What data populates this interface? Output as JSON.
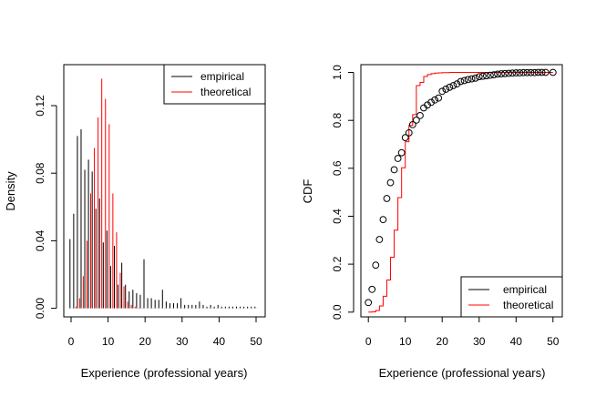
{
  "colors": {
    "empirical": "#000000",
    "theoretical": "#ff0000"
  },
  "chart_data": [
    {
      "type": "bar",
      "subtype": "histogram-comparison",
      "title": "",
      "xlabel": "Experience (professional years)",
      "ylabel": "Density",
      "xlim": [
        -2,
        52
      ],
      "ylim": [
        -0.005,
        0.143
      ],
      "xticks": [
        0,
        10,
        20,
        30,
        40,
        50
      ],
      "xtick_labels": [
        "0",
        "10",
        "20",
        "30",
        "40",
        "50"
      ],
      "yticks": [
        0.0,
        0.04,
        0.08,
        0.12
      ],
      "ytick_labels": [
        "0.00",
        "0.04",
        "0.08",
        "0.12"
      ],
      "legend": {
        "position": "top-right",
        "entries": [
          "empirical",
          "theoretical"
        ]
      },
      "series": [
        {
          "name": "empirical",
          "x": [
            0,
            1,
            2,
            3,
            4,
            5,
            6,
            7,
            8,
            9,
            10,
            11,
            12,
            13,
            14,
            15,
            16,
            17,
            18,
            19,
            20,
            21,
            22,
            23,
            24,
            25,
            26,
            27,
            28,
            29,
            30,
            31,
            32,
            33,
            34,
            35,
            36,
            37,
            38,
            39,
            40,
            41,
            42,
            43,
            44,
            45,
            46,
            47,
            48,
            49,
            50
          ],
          "values": [
            0.041,
            0.056,
            0.102,
            0.106,
            0.082,
            0.088,
            0.081,
            0.059,
            0.065,
            0.039,
            0.046,
            0.025,
            0.037,
            0.014,
            0.027,
            0.014,
            0.01,
            0.011,
            0.009,
            0.008,
            0.029,
            0.006,
            0.006,
            0.005,
            0.005,
            0.011,
            0.004,
            0.003,
            0.003,
            0.003,
            0.006,
            0.002,
            0.002,
            0.002,
            0.002,
            0.004,
            0.002,
            0.001,
            0.002,
            0.001,
            0.002,
            0.001,
            0.001,
            0.001,
            0.001,
            0.001,
            0.001,
            0.001,
            0.001,
            0.001,
            0.001
          ]
        },
        {
          "name": "theoretical",
          "x": [
            0,
            1,
            2,
            3,
            4,
            5,
            6,
            7,
            8,
            9,
            10,
            11,
            12,
            13,
            14,
            15,
            16,
            17,
            18,
            19,
            20,
            21,
            22,
            23,
            24,
            25,
            26,
            27,
            28,
            29,
            30,
            31,
            32,
            33,
            34,
            35,
            36,
            37,
            38,
            39,
            40,
            41,
            42,
            43,
            44,
            45,
            46,
            47,
            48,
            49,
            50
          ],
          "values": [
            0.0001,
            0.001,
            0.006,
            0.019,
            0.04,
            0.068,
            0.095,
            0.113,
            0.136,
            0.124,
            0.109,
            0.068,
            0.045,
            0.021,
            0.013,
            0.004,
            0.002,
            0.001,
            0.0004,
            0.0002,
            0.0001,
            0.0001,
            0.0001,
            0.0001,
            0.0001,
            0.0001,
            0.0001,
            0.0001,
            0.0001,
            0.0001,
            0.0001,
            0.0001,
            0.0001,
            0.0001,
            0.0001,
            0.0001,
            0.0001,
            0.0001,
            0.0001,
            0.0001,
            0.0001,
            0.0001,
            0.0001,
            0.0001,
            0.0001,
            0.0001,
            0.0001,
            0.0001,
            0.0001,
            0.0001,
            0.0001
          ]
        }
      ]
    },
    {
      "type": "line",
      "subtype": "cdf-comparison",
      "title": "",
      "xlabel": "Experience (professional years)",
      "ylabel": "CDF",
      "xlim": [
        -2,
        52
      ],
      "ylim": [
        -0.02,
        1.04
      ],
      "xticks": [
        0,
        10,
        20,
        30,
        40,
        50
      ],
      "xtick_labels": [
        "0",
        "10",
        "20",
        "30",
        "40",
        "50"
      ],
      "yticks": [
        0.0,
        0.2,
        0.4,
        0.6,
        0.8,
        1.0
      ],
      "ytick_labels": [
        "0.0",
        "0.2",
        "0.4",
        "0.6",
        "0.8",
        "1.0"
      ],
      "legend": {
        "position": "bottom-right",
        "entries": [
          "empirical",
          "theoretical"
        ]
      },
      "series": [
        {
          "name": "empirical",
          "style": "points",
          "x": [
            0,
            1,
            2,
            3,
            4,
            5,
            6,
            7,
            8,
            9,
            10,
            11,
            12,
            13,
            14,
            15,
            16,
            17,
            18,
            19,
            20,
            21,
            22,
            23,
            24,
            25,
            26,
            27,
            28,
            29,
            30,
            31,
            32,
            33,
            34,
            35,
            36,
            37,
            38,
            39,
            40,
            41,
            42,
            43,
            44,
            45,
            46,
            47,
            48,
            50
          ],
          "values": [
            0.04,
            0.095,
            0.196,
            0.303,
            0.386,
            0.474,
            0.54,
            0.594,
            0.641,
            0.665,
            0.728,
            0.748,
            0.782,
            0.801,
            0.82,
            0.852,
            0.864,
            0.875,
            0.885,
            0.893,
            0.921,
            0.93,
            0.938,
            0.945,
            0.952,
            0.962,
            0.966,
            0.97,
            0.973,
            0.976,
            0.982,
            0.984,
            0.986,
            0.988,
            0.99,
            0.993,
            0.994,
            0.995,
            0.996,
            0.997,
            0.998,
            0.998,
            0.999,
            0.999,
            0.999,
            0.999,
            1.0,
            1.0,
            1.0,
            1.0
          ]
        },
        {
          "name": "theoretical",
          "style": "step",
          "x": [
            0,
            1,
            2,
            3,
            4,
            5,
            6,
            7,
            8,
            9,
            10,
            11,
            12,
            13,
            14,
            15,
            16,
            17,
            18,
            19,
            20,
            22,
            24,
            26,
            28,
            30,
            35,
            40,
            45,
            50
          ],
          "values": [
            0.0,
            0.001,
            0.007,
            0.026,
            0.066,
            0.134,
            0.229,
            0.342,
            0.478,
            0.602,
            0.711,
            0.779,
            0.824,
            0.945,
            0.958,
            0.983,
            0.991,
            0.995,
            0.997,
            0.998,
            0.999,
            1.0,
            1.0,
            1.0,
            1.0,
            1.0,
            1.0,
            1.0,
            1.0,
            1.0
          ]
        }
      ]
    }
  ]
}
